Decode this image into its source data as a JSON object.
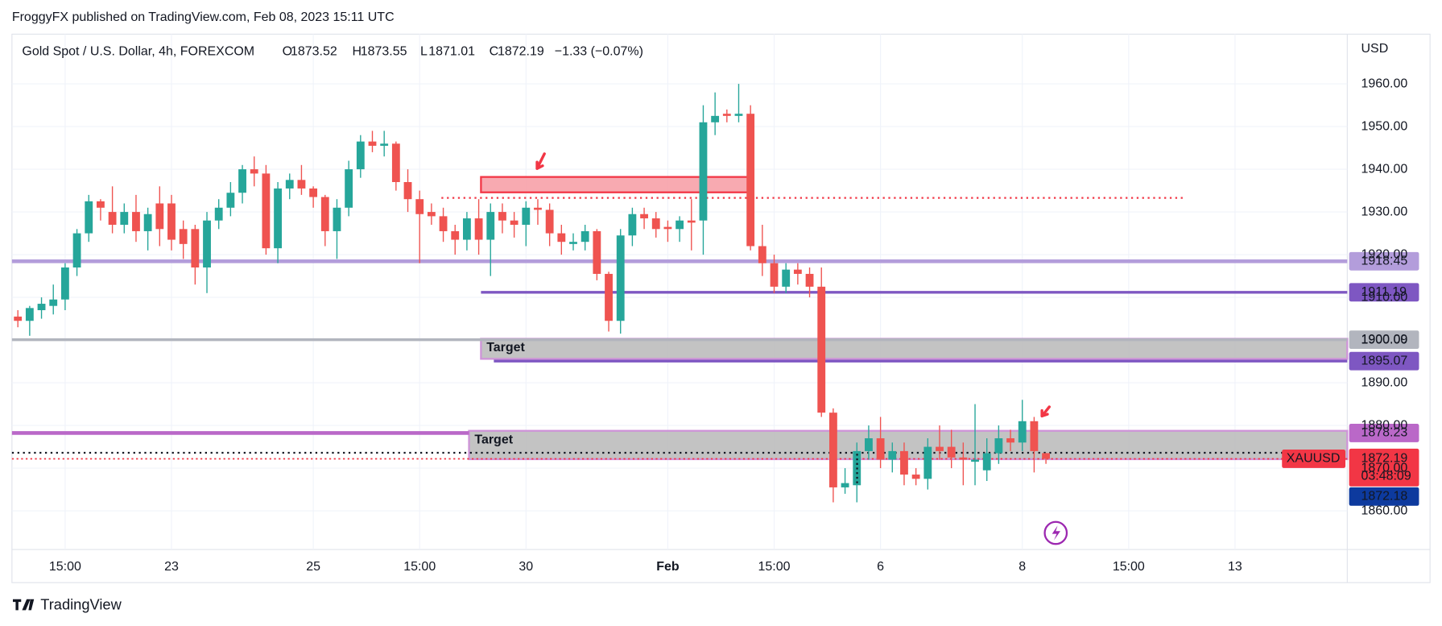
{
  "publisher": "FroggyFX published on TradingView.com, Feb 08, 2023 15:11 UTC",
  "brand": "TradingView",
  "chart_data": {
    "type": "candlestick",
    "title": "Gold Spot / U.S. Dollar, 4h, FOREXCOM",
    "ohlc": [
      {
        "key": "O",
        "value": 1873.52
      },
      {
        "key": "H",
        "value": 1873.55
      },
      {
        "key": "L",
        "value": 1871.01
      },
      {
        "key": "C",
        "value": 1872.19
      }
    ],
    "change_label": "−1.33 (−0.07%)",
    "y_axis_label": "USD",
    "up_color": "#26a69a",
    "down_color": "#ef5350",
    "grid": true,
    "ylim": [
      1850.95,
      1971.64
    ],
    "yticks": [
      {
        "value": 1860,
        "label": "1860.00"
      },
      {
        "value": 1870,
        "label": "1870.00"
      },
      {
        "value": 1880,
        "label": "1880.00"
      },
      {
        "value": 1890,
        "label": "1890.00"
      },
      {
        "value": 1900,
        "label": "1900.00"
      },
      {
        "value": 1910,
        "label": "1910.00"
      },
      {
        "value": 1920,
        "label": "1920.00"
      },
      {
        "value": 1930,
        "label": "1930.00"
      },
      {
        "value": 1940,
        "label": "1940.00"
      },
      {
        "value": 1950,
        "label": "1950.00"
      },
      {
        "value": 1960,
        "label": "1960.00"
      }
    ],
    "categories": [
      null,
      null,
      null,
      null,
      "15:00",
      null,
      null,
      null,
      null,
      null,
      null,
      null,
      null,
      "23",
      null,
      null,
      null,
      null,
      null,
      null,
      null,
      null,
      null,
      null,
      null,
      "25",
      null,
      null,
      null,
      null,
      null,
      null,
      null,
      null,
      "15:00",
      null,
      null,
      null,
      null,
      null,
      null,
      null,
      null,
      "30",
      null,
      null,
      null,
      null,
      null,
      null,
      null,
      null,
      null,
      null,
      null,
      "Feb",
      null,
      null,
      null,
      null,
      null,
      null,
      null,
      null,
      "15:00",
      null,
      null,
      null,
      null,
      null,
      null,
      null,
      null,
      "6",
      null,
      null,
      null,
      null,
      null,
      null,
      null,
      null,
      null,
      null,
      null,
      "8",
      null,
      null,
      null,
      null,
      null,
      null,
      null,
      null,
      "15:00",
      null,
      null,
      null,
      null,
      null,
      null,
      null,
      null,
      "13",
      null,
      null,
      null,
      null,
      null,
      null,
      null,
      null,
      null
    ],
    "open": [
      1905.5,
      1904.5,
      1907,
      1908,
      1909.5,
      1917,
      1925,
      1932.5,
      1930,
      1927,
      1930,
      1925.5,
      1932,
      1932,
      1926,
      1926,
      1917,
      1928,
      1931,
      1934.5,
      1940,
      1939,
      1921.5,
      1935.5,
      1937.5,
      1935.5,
      1933.5,
      1925.5,
      1931,
      1940,
      1946.5,
      1945.5,
      1946,
      1937,
      1933,
      1930,
      1929,
      1925.5,
      1923.5,
      1928.5,
      1923.5,
      1930,
      1928,
      1927,
      1931,
      1930.5,
      1925,
      1922.5,
      1923,
      1925.5,
      1915.5,
      1904.5,
      1924.5,
      1929.5,
      1928.5,
      1926.5,
      1926,
      1928,
      1928,
      1951,
      1953,
      1952.5,
      1953,
      1922,
      1918,
      1912.5,
      1916.5,
      1915.5,
      1912.5,
      1883,
      1865.5,
      1866,
      1874,
      1877,
      1872,
      1874,
      1868.5,
      1867.5,
      1875,
      1875,
      1872.5,
      1871.5,
      1869.5,
      1873.5,
      1877,
      1876,
      1881,
      1873.52,
      null,
      null,
      null,
      null,
      null,
      null,
      null,
      null,
      null,
      null,
      null,
      null,
      null,
      null,
      null,
      null,
      null,
      null,
      null,
      null,
      null,
      null,
      null,
      null,
      null
    ],
    "high": [
      1907,
      1908,
      1910,
      1913,
      1918,
      1926,
      1934,
      1933,
      1936,
      1932,
      1934,
      1931,
      1936,
      1934,
      1928,
      1927,
      1930,
      1933,
      1937,
      1941,
      1943,
      1941,
      1937,
      1939,
      1941,
      1936,
      1934,
      1933,
      1942,
      1948,
      1949,
      1949,
      1946.5,
      1940,
      1935,
      1932,
      1931,
      1927,
      1930,
      1933,
      1932,
      1932,
      1930,
      1932.5,
      1933,
      1932,
      1927,
      1925,
      1927,
      1926,
      1916,
      1926,
      1931,
      1931,
      1930,
      1928,
      1929,
      1933,
      1955,
      1958,
      1954,
      1960,
      1955,
      1927,
      1920,
      1918,
      1918,
      1917,
      1917,
      1884,
      1870,
      1876,
      1880,
      1882,
      1876,
      1876,
      1870,
      1877,
      1880,
      1879,
      1876,
      1885,
      1877,
      1880,
      1879,
      1886,
      1882,
      1873.55,
      null,
      null,
      null,
      null,
      null,
      null,
      null,
      null,
      null,
      null,
      null,
      null,
      null,
      null,
      null,
      null,
      null,
      null,
      null,
      null,
      null,
      null,
      null,
      null,
      null
    ],
    "low": [
      1903,
      1901,
      1905,
      1906,
      1907,
      1915,
      1923,
      1928,
      1925,
      1925,
      1923,
      1921,
      1922,
      1921,
      1919,
      1913,
      1911,
      1926,
      1929,
      1932,
      1936,
      1920,
      1918,
      1933,
      1934,
      1931,
      1922,
      1919,
      1929,
      1938,
      1944,
      1943,
      1935,
      1930,
      1918,
      1927,
      1923,
      1920,
      1921,
      1920,
      1915,
      1925,
      1924,
      1922,
      1927,
      1922,
      1920,
      1921,
      1921,
      1914,
      1902,
      1901.5,
      1922,
      1926,
      1924,
      1923,
      1923,
      1921,
      1920,
      1948,
      1951,
      1951,
      1921,
      1915,
      1911,
      1911,
      1913,
      1910,
      1882,
      1862,
      1864,
      1862,
      1872,
      1870,
      1869,
      1866,
      1866,
      1865,
      1872,
      1870,
      1866,
      1866,
      1867,
      1871,
      1874,
      1874,
      1869,
      1871.01,
      null,
      null,
      null,
      null,
      null,
      null,
      null,
      null,
      null,
      null,
      null,
      null,
      null,
      null,
      null,
      null,
      null,
      null,
      null,
      null,
      null,
      null,
      null,
      null,
      null
    ],
    "close": [
      1904.5,
      1907.5,
      1908.5,
      1909.5,
      1917,
      1925,
      1932.5,
      1931,
      1927,
      1930,
      1925.5,
      1929.5,
      1926,
      1923.5,
      1922.5,
      1917,
      1928,
      1931,
      1934.5,
      1940,
      1939,
      1921.5,
      1935.5,
      1937.5,
      1935.5,
      1933.5,
      1925.5,
      1931,
      1940,
      1946.5,
      1945.5,
      1946,
      1937,
      1933,
      1929.5,
      1929,
      1925.5,
      1923.5,
      1928.5,
      1923.5,
      1930,
      1928,
      1927,
      1931,
      1930.5,
      1925,
      1923,
      1923,
      1925.5,
      1915.5,
      1904.5,
      1924.5,
      1929.5,
      1928.5,
      1926,
      1926,
      1928,
      1927.5,
      1951,
      1952.5,
      1952.5,
      1953,
      1922,
      1918,
      1912.5,
      1916.5,
      1915.5,
      1912.5,
      1883,
      1865.5,
      1866.5,
      1874,
      1877,
      1872,
      1874,
      1868.5,
      1867.5,
      1875,
      1874,
      1872.5,
      1872,
      1872,
      1873.5,
      1877,
      1876,
      1881,
      1874,
      1872.19,
      null,
      null,
      null,
      null,
      null,
      null,
      null,
      null,
      null,
      null,
      null,
      null,
      null,
      null,
      null,
      null,
      null,
      null,
      null,
      null,
      null,
      null,
      null,
      null,
      null
    ],
    "levels": [
      {
        "value": 1918.45,
        "color": "#b39ddb",
        "label_color": "#131722"
      },
      {
        "value": 1911.19,
        "color": "#7e57c2",
        "label_color": "#ffffff"
      },
      {
        "value": 1900.09,
        "color": "#b2b5be",
        "label_color": "#131722"
      },
      {
        "value": 1895.07,
        "color": "#7e57c2",
        "label_color": "#ffffff"
      },
      {
        "value": 1878.23,
        "color": "#ba68c8",
        "label_color": "#ffffff"
      }
    ],
    "zones": [
      {
        "label": "Target",
        "top": 1900.3,
        "bottom": 1895.6,
        "color": "#bdbdbd",
        "border": "#ce93d8"
      },
      {
        "label": "Target",
        "top": 1878.75,
        "bottom": 1872.1,
        "color": "#bdbdbd",
        "border": "#ce93d8"
      },
      {
        "top": 1938.2,
        "bottom": 1934.6,
        "color": "#f7a1a8",
        "border": "#f23645"
      }
    ],
    "dotted_levels": [
      {
        "value": 1933.3,
        "color": "#f23645"
      },
      {
        "value": 1873.6,
        "color": "#131722"
      }
    ],
    "last_price": 1872.19,
    "last_color": "#f23645",
    "symbol": "XAUUSD",
    "countdown": "03:48:09",
    "bid": 1872.18,
    "bid_color": "#0d3a9e"
  }
}
